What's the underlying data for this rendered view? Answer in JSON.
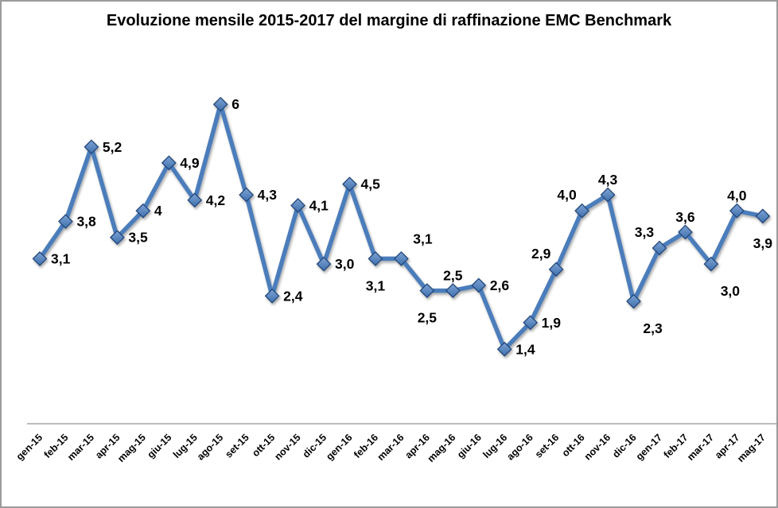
{
  "window": {
    "background_color": "#ffffff",
    "border_color": "#9b9b9b"
  },
  "chart_data": {
    "type": "line",
    "title": "Evoluzione mensile 2015-2017 del margine di raffinazione EMC Benchmark",
    "xlabel": "",
    "ylabel": "",
    "categories": [
      "gen-15",
      "feb-15",
      "mar-15",
      "apr-15",
      "mag-15",
      "giu-15",
      "lug-15",
      "ago-15",
      "set-15",
      "ott-15",
      "nov-15",
      "dic-15",
      "gen-16",
      "feb-16",
      "mar-16",
      "apr-16",
      "mag-16",
      "giu-16",
      "lug-16",
      "ago-16",
      "set-16",
      "ott-16",
      "nov-16",
      "dic-16",
      "gen-17",
      "feb-17",
      "mar-17",
      "apr-17",
      "mag-17"
    ],
    "values": [
      3.1,
      3.8,
      5.2,
      3.5,
      4,
      4.9,
      4.2,
      6,
      4.3,
      2.4,
      4.1,
      3.0,
      4.5,
      3.1,
      3.1,
      2.5,
      2.5,
      2.6,
      1.4,
      1.9,
      2.9,
      4.0,
      4.3,
      2.3,
      3.3,
      3.6,
      3.0,
      4.0,
      3.9
    ],
    "point_labels": [
      "3,1",
      "3,8",
      "5,2",
      "3,5",
      "4",
      "4,9",
      "4,2",
      "6",
      "4,3",
      "2,4",
      "4,1",
      "3,0",
      "4,5",
      "3,1",
      "3,1",
      "2,5",
      "2,5",
      "2,6",
      "1,4",
      "1,9",
      "2,9",
      "4,0",
      "4,3",
      "2,3",
      "3,3",
      "3,6",
      "3,0",
      "4,0",
      "3,9"
    ],
    "label_positions": [
      "right",
      "right",
      "right",
      "right",
      "right",
      "right",
      "right",
      "right",
      "right",
      "right",
      "right",
      "right",
      "right",
      "below",
      "above-right",
      "below",
      "above",
      "right",
      "right",
      "right",
      "above-left",
      "above-left",
      "above",
      "below-right",
      "above-left",
      "above",
      "below-right",
      "above",
      "below"
    ],
    "decimal_separator": ",",
    "ylim": [
      0,
      6.5
    ],
    "grid": false,
    "legend": "none",
    "x_tick_rotation": -45,
    "marker": "diamond",
    "series_color": "#4c7dbb",
    "marker_fill_top": "#7da3d4",
    "marker_fill_bottom": "#3f70ad",
    "marker_stroke": "#24477a",
    "axis_color": "#a6a6a6",
    "data_label_color": "#000000",
    "tick_label_color": "#000000"
  }
}
